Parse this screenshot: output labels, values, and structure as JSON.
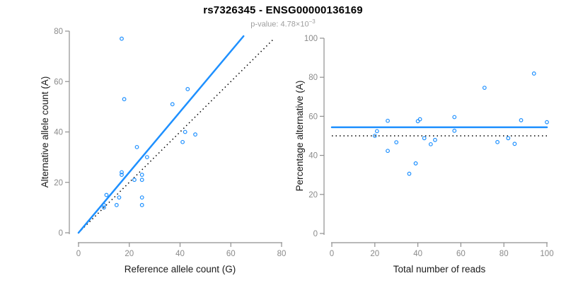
{
  "header": {
    "title": "rs7326345 - ENSG00000136169",
    "subtitle_prefix": "p-value: 4.78×10",
    "subtitle_exponent": "−3"
  },
  "colors": {
    "accent_blue": "#1e90ff",
    "line_black": "#000000",
    "axis_gray": "#8f8f8f",
    "tick_label_gray": "#8a8a8a",
    "axis_title_black": "#1a1a1a",
    "background": "#ffffff"
  },
  "chart_data": [
    {
      "type": "scatter",
      "name": "ref-vs-alt-count",
      "xlabel": "Reference allele count (G)",
      "ylabel": "Alternative allele count (A)",
      "xlim": [
        0,
        80
      ],
      "ylim": [
        0,
        80
      ],
      "xticks": [
        0,
        20,
        40,
        60,
        80
      ],
      "yticks": [
        0,
        20,
        40,
        60,
        80
      ],
      "point_style": "open-circle",
      "points": [
        [
          17,
          77
        ],
        [
          18,
          53
        ],
        [
          43,
          57
        ],
        [
          37,
          51
        ],
        [
          42,
          40
        ],
        [
          46,
          39
        ],
        [
          41,
          36
        ],
        [
          23,
          34
        ],
        [
          27,
          30
        ],
        [
          17,
          24
        ],
        [
          17,
          23
        ],
        [
          25,
          23
        ],
        [
          22,
          21
        ],
        [
          25,
          21
        ],
        [
          11,
          15
        ],
        [
          16,
          14
        ],
        [
          25,
          14
        ],
        [
          15,
          11
        ],
        [
          25,
          11
        ],
        [
          10,
          11
        ],
        [
          10,
          10
        ]
      ],
      "lines": [
        {
          "name": "identity-line",
          "style": "dotted",
          "color": "#000000",
          "width": 1.5,
          "from": [
            0,
            0
          ],
          "to": [
            77,
            77
          ]
        },
        {
          "name": "regression-line",
          "style": "solid",
          "color": "#1e90ff",
          "width": 2.5,
          "from": [
            0,
            0
          ],
          "to": [
            65,
            78
          ]
        }
      ],
      "grid": false,
      "legend": null
    },
    {
      "type": "scatter",
      "name": "reads-vs-percentage",
      "xlabel": "Total number of reads",
      "ylabel": "Percentage alternative (A)",
      "xlim": [
        0,
        100
      ],
      "ylim": [
        0,
        100
      ],
      "xticks": [
        0,
        20,
        40,
        60,
        80,
        100
      ],
      "yticks": [
        0,
        20,
        40,
        60,
        80,
        100
      ],
      "point_style": "open-circle",
      "points": [
        [
          94,
          81.9
        ],
        [
          71,
          74.6
        ],
        [
          100,
          57.0
        ],
        [
          88,
          58.0
        ],
        [
          82,
          48.8
        ],
        [
          85,
          45.9
        ],
        [
          77,
          46.8
        ],
        [
          57,
          59.6
        ],
        [
          57,
          52.6
        ],
        [
          41,
          58.5
        ],
        [
          40,
          57.5
        ],
        [
          48,
          47.9
        ],
        [
          43,
          48.8
        ],
        [
          46,
          45.7
        ],
        [
          26,
          57.7
        ],
        [
          30,
          46.7
        ],
        [
          39,
          35.9
        ],
        [
          26,
          42.3
        ],
        [
          36,
          30.6
        ],
        [
          21,
          52.4
        ],
        [
          20,
          50.0
        ]
      ],
      "lines": [
        {
          "name": "fifty-percent-line",
          "style": "dotted",
          "color": "#000000",
          "width": 1.5,
          "from": [
            0,
            50
          ],
          "to": [
            100,
            50
          ]
        },
        {
          "name": "overall-percentage-line",
          "style": "solid",
          "color": "#1e90ff",
          "width": 2.5,
          "from": [
            0,
            54.4
          ],
          "to": [
            100,
            54.4
          ]
        }
      ],
      "grid": false,
      "legend": null
    }
  ]
}
